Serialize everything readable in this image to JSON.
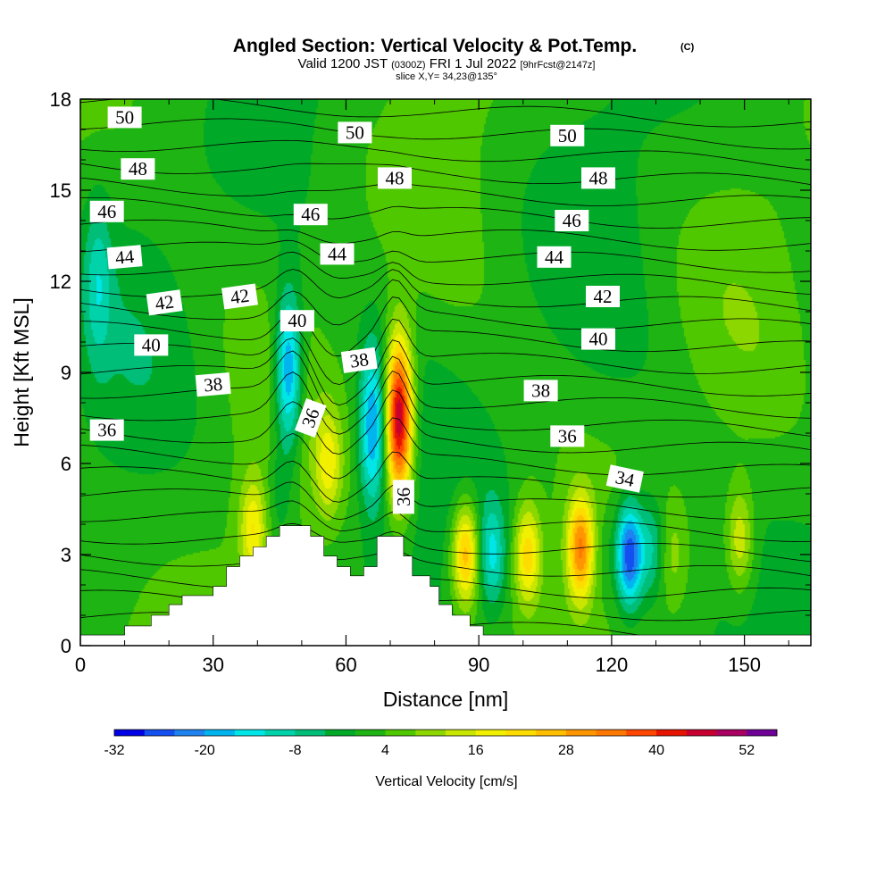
{
  "chart_data": {
    "type": "heatmap",
    "title": "Angled Section: Vertical Velocity & Pot.Temp.",
    "title_tag": "(C)",
    "subtitle_prefix": "Valid 1200 JST",
    "subtitle_utc": "(0300Z)",
    "subtitle_date": "FRI 1 Jul 2022",
    "subtitle_fcst": "[9hrFcst@2147z]",
    "slice_label": "slice X,Y= 34,23@135°",
    "xlabel": "Distance [nm]",
    "ylabel": "Height [Kft MSL]",
    "xlim": [
      0,
      165
    ],
    "ylim": [
      0,
      18
    ],
    "x_ticks": [
      "0",
      "30",
      "60",
      "90",
      "120",
      "150"
    ],
    "y_ticks": [
      "0",
      "3",
      "6",
      "9",
      "12",
      "15",
      "18"
    ],
    "colorbar": {
      "label": "Vertical Velocity [cm/s]",
      "tick_labels": [
        "-32",
        "-20",
        "-8",
        "4",
        "16",
        "28",
        "40",
        "52"
      ],
      "levels": [
        -32,
        -28,
        -24,
        -20,
        -16,
        -12,
        -8,
        -4,
        0,
        4,
        8,
        12,
        16,
        20,
        24,
        28,
        32,
        36,
        40,
        44,
        48,
        52,
        56
      ],
      "colors": [
        "#0000e6",
        "#1450f0",
        "#1e82f0",
        "#00b4f0",
        "#00e6e6",
        "#00d2aa",
        "#00be78",
        "#00aa28",
        "#1eb414",
        "#50c800",
        "#8cd700",
        "#c8e600",
        "#f0f000",
        "#ffdc00",
        "#ffbe00",
        "#ff9600",
        "#ff7800",
        "#ff4600",
        "#e61400",
        "#c80032",
        "#aa0064",
        "#6e0096"
      ]
    },
    "background_velocity": 2,
    "velocity_features": [
      {
        "x": 72,
        "y": 7.5,
        "value": 48
      },
      {
        "x": 66,
        "y": 7.2,
        "value": -22
      },
      {
        "x": 56,
        "y": 6.0,
        "value": 14
      },
      {
        "x": 45,
        "y": 5.0,
        "value": -6
      },
      {
        "x": 47,
        "y": 9.0,
        "value": -26
      },
      {
        "x": 39,
        "y": 3.8,
        "value": 16
      },
      {
        "x": 87,
        "y": 3.0,
        "value": 26
      },
      {
        "x": 93,
        "y": 3.0,
        "value": -14
      },
      {
        "x": 101,
        "y": 3.0,
        "value": 20
      },
      {
        "x": 113,
        "y": 3.2,
        "value": 28
      },
      {
        "x": 118,
        "y": 3.0,
        "value": -4
      },
      {
        "x": 124,
        "y": 3.0,
        "value": -32
      },
      {
        "x": 129,
        "y": 3.2,
        "value": -12
      },
      {
        "x": 134,
        "y": 3.0,
        "value": 6
      },
      {
        "x": 149,
        "y": 3.5,
        "value": 14
      },
      {
        "x": 4,
        "y": 12.0,
        "value": -10
      }
    ],
    "terrain": [
      [
        0,
        0.35
      ],
      [
        10,
        0.35
      ],
      [
        10,
        0.65
      ],
      [
        16,
        0.65
      ],
      [
        16,
        1.0
      ],
      [
        20,
        1.0
      ],
      [
        20,
        1.35
      ],
      [
        23,
        1.35
      ],
      [
        23,
        1.65
      ],
      [
        30,
        1.65
      ],
      [
        30,
        1.95
      ],
      [
        33,
        1.95
      ],
      [
        33,
        2.6
      ],
      [
        36,
        2.6
      ],
      [
        36,
        2.95
      ],
      [
        39,
        2.95
      ],
      [
        39,
        3.25
      ],
      [
        42,
        3.25
      ],
      [
        42,
        3.6
      ],
      [
        45,
        3.6
      ],
      [
        45,
        3.95
      ],
      [
        52,
        3.95
      ],
      [
        52,
        3.6
      ],
      [
        55,
        3.6
      ],
      [
        55,
        2.95
      ],
      [
        58,
        2.95
      ],
      [
        58,
        2.6
      ],
      [
        61,
        2.6
      ],
      [
        61,
        2.3
      ],
      [
        64,
        2.3
      ],
      [
        64,
        2.6
      ],
      [
        67,
        2.6
      ],
      [
        67,
        3.6
      ],
      [
        73,
        3.6
      ],
      [
        73,
        2.95
      ],
      [
        75,
        2.95
      ],
      [
        75,
        2.3
      ],
      [
        79,
        2.3
      ],
      [
        79,
        1.95
      ],
      [
        81,
        1.95
      ],
      [
        81,
        1.35
      ],
      [
        84,
        1.35
      ],
      [
        84,
        1.0
      ],
      [
        88,
        1.0
      ],
      [
        88,
        0.65
      ],
      [
        91,
        0.65
      ],
      [
        91,
        0.35
      ],
      [
        165,
        0.35
      ]
    ],
    "theta_contour_labels": [
      {
        "text": "50",
        "x": 10,
        "y": 17.4,
        "angle": 0
      },
      {
        "text": "50",
        "x": 62,
        "y": 16.9,
        "angle": 0
      },
      {
        "text": "50",
        "x": 110,
        "y": 16.8,
        "angle": 0
      },
      {
        "text": "48",
        "x": 13,
        "y": 15.7,
        "angle": 0
      },
      {
        "text": "48",
        "x": 71,
        "y": 15.4,
        "angle": 0
      },
      {
        "text": "48",
        "x": 117,
        "y": 15.4,
        "angle": 0
      },
      {
        "text": "46",
        "x": 6,
        "y": 14.3,
        "angle": 0
      },
      {
        "text": "46",
        "x": 52,
        "y": 14.2,
        "angle": 0
      },
      {
        "text": "46",
        "x": 111,
        "y": 14.0,
        "angle": 0
      },
      {
        "text": "44",
        "x": 10,
        "y": 12.8,
        "angle": -5
      },
      {
        "text": "44",
        "x": 58,
        "y": 12.9,
        "angle": 0
      },
      {
        "text": "44",
        "x": 107,
        "y": 12.8,
        "angle": 0
      },
      {
        "text": "42",
        "x": 19,
        "y": 11.3,
        "angle": -8
      },
      {
        "text": "42",
        "x": 36,
        "y": 11.5,
        "angle": -8
      },
      {
        "text": "42",
        "x": 118,
        "y": 11.5,
        "angle": 0
      },
      {
        "text": "40",
        "x": 16,
        "y": 9.9,
        "angle": 0
      },
      {
        "text": "40",
        "x": 49,
        "y": 10.7,
        "angle": 0
      },
      {
        "text": "40",
        "x": 117,
        "y": 10.1,
        "angle": 0
      },
      {
        "text": "38",
        "x": 30,
        "y": 8.6,
        "angle": -5
      },
      {
        "text": "38",
        "x": 63,
        "y": 9.4,
        "angle": -8
      },
      {
        "text": "38",
        "x": 104,
        "y": 8.4,
        "angle": 0
      },
      {
        "text": "36",
        "x": 6,
        "y": 7.1,
        "angle": 0
      },
      {
        "text": "36",
        "x": 52,
        "y": 7.5,
        "angle": -70
      },
      {
        "text": "36",
        "x": 110,
        "y": 6.9,
        "angle": 0
      },
      {
        "text": "36",
        "x": 73,
        "y": 4.9,
        "angle": -90
      },
      {
        "text": "34",
        "x": 123,
        "y": 5.5,
        "angle": 12
      }
    ]
  }
}
